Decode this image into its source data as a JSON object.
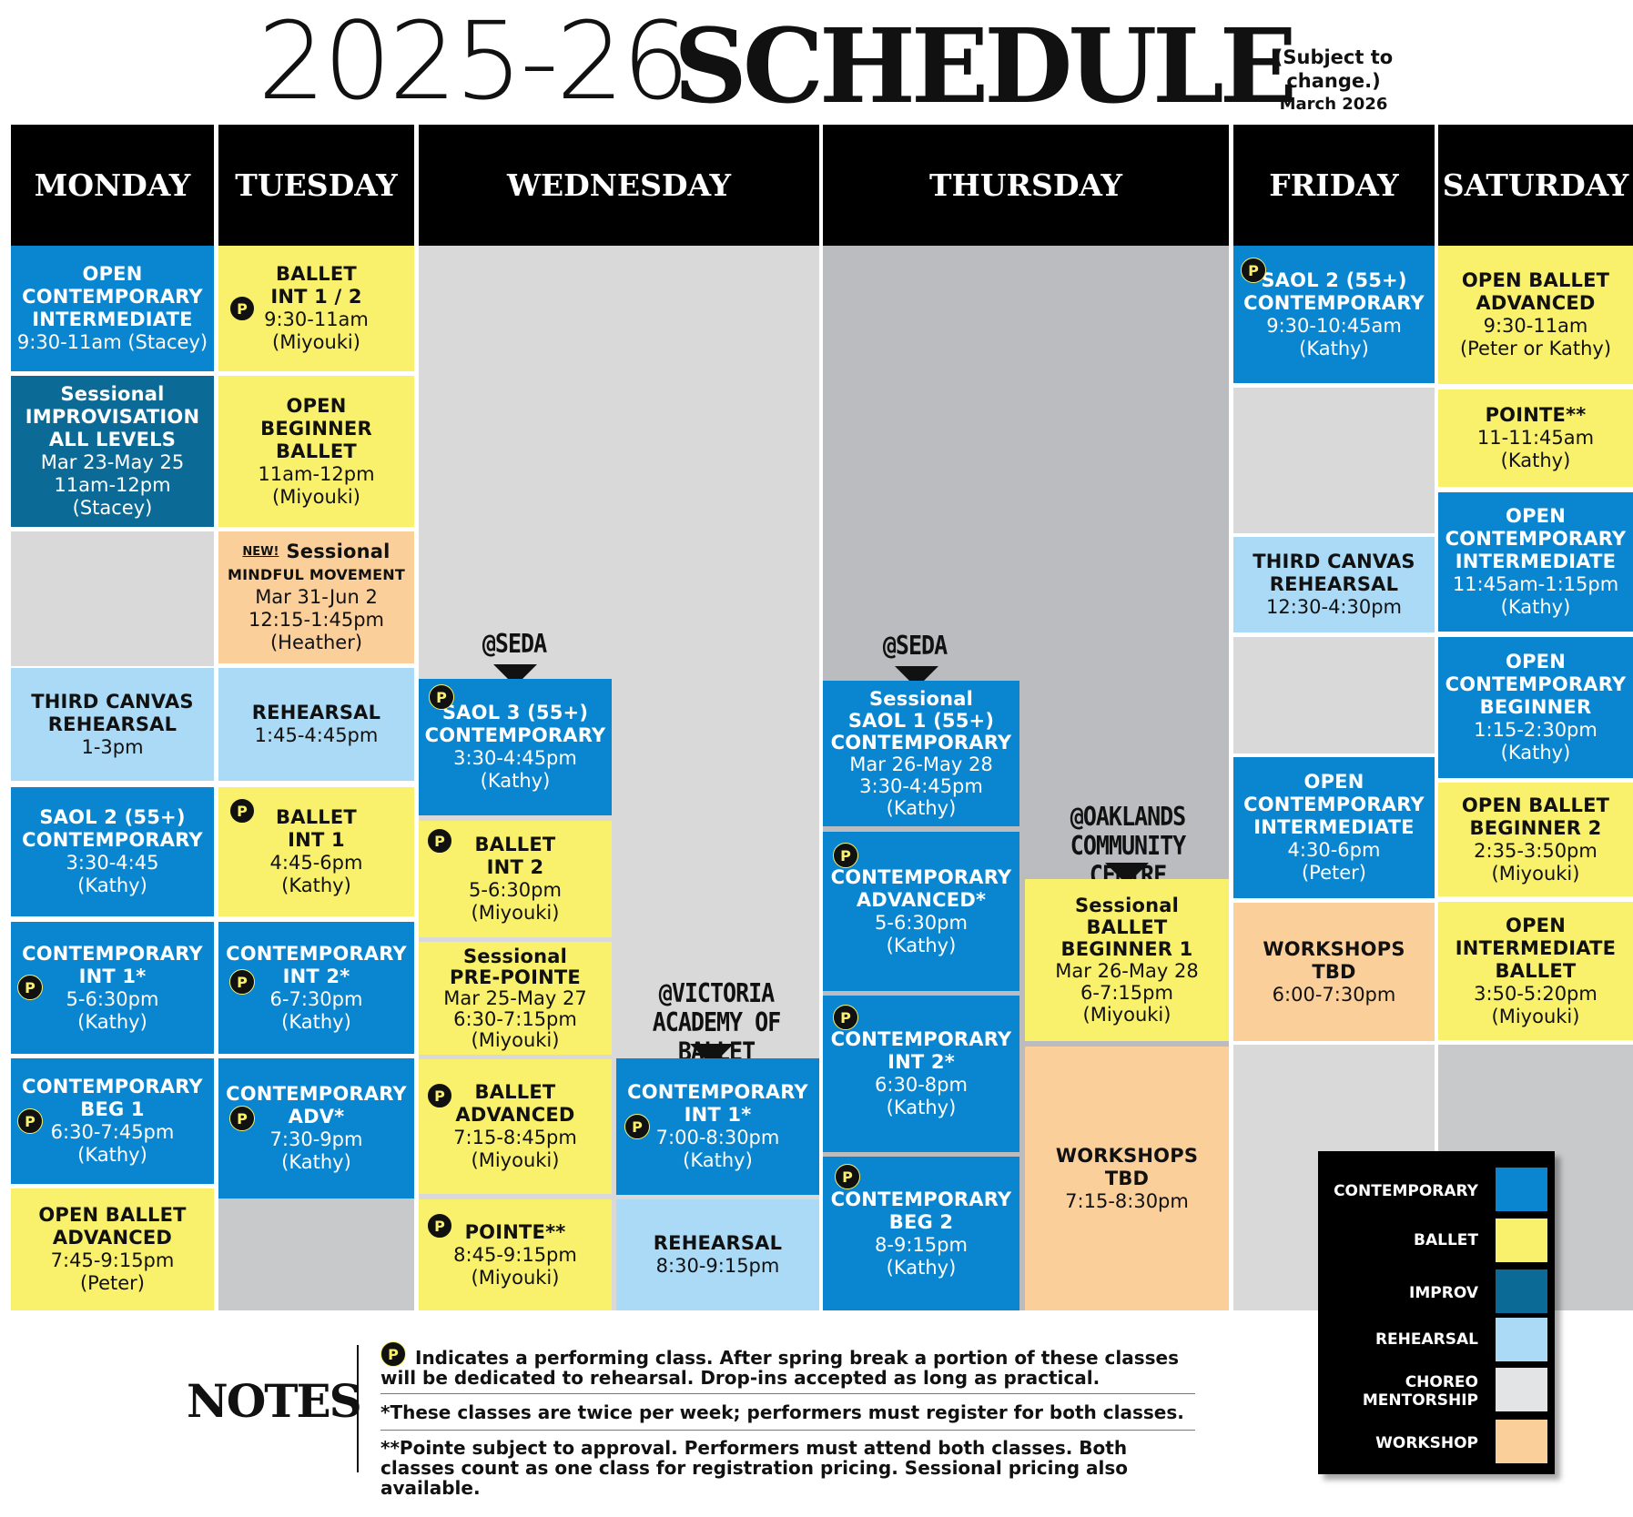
{
  "header": {
    "title_year": "2025-26",
    "title_word": "SCHEDULE",
    "subject_note": "(Subject to change.)",
    "date": "March 2026"
  },
  "days": [
    "MONDAY",
    "TUESDAY",
    "WEDNESDAY",
    "THURSDAY",
    "FRIDAY",
    "SATURDAY"
  ],
  "performing_badge": "P",
  "colors": {
    "contemporary": "#0a85cf",
    "ballet": "#f9f16b",
    "improv": "#0b6b96",
    "rehearsal": "#aadaf6",
    "choreo_mentorship": "#e3e4e6",
    "workshop": "#fbcf99"
  },
  "monday": [
    {
      "lines": [
        "OPEN",
        "CONTEMPORARY",
        "INTERMEDIATE"
      ],
      "sub": [
        "9:30-11am (Stacey)"
      ]
    },
    {
      "lines": [
        "Sessional",
        "IMPROVISATION",
        "ALL LEVELS"
      ],
      "sub": [
        "Mar 23-May 25",
        "11am-12pm (Stacey)"
      ]
    },
    {
      "lines": [
        "THIRD CANVAS",
        "REHEARSAL"
      ],
      "sub": [
        "1-3pm"
      ]
    },
    {
      "lines": [
        "SAOL 2 (55+)",
        "CONTEMPORARY"
      ],
      "sub": [
        "3:30-4:45",
        "(Kathy)"
      ]
    },
    {
      "lines": [
        "CONTEMPORARY",
        "INT 1*"
      ],
      "sub": [
        "5-6:30pm",
        "(Kathy)"
      ]
    },
    {
      "lines": [
        "CONTEMPORARY",
        "BEG 1"
      ],
      "sub": [
        "6:30-7:45pm",
        "(Kathy)"
      ]
    },
    {
      "lines": [
        "OPEN BALLET",
        "ADVANCED"
      ],
      "sub": [
        "7:45-9:15pm",
        "(Peter)"
      ]
    }
  ],
  "tuesday": [
    {
      "lines": [
        "BALLET",
        "INT 1 / 2"
      ],
      "sub": [
        "9:30-11am",
        "(Miyouki)"
      ]
    },
    {
      "lines": [
        "OPEN",
        "BEGINNER",
        "BALLET"
      ],
      "sub": [
        "11am-12pm",
        "(Miyouki)"
      ]
    },
    {
      "new": "NEW!",
      "lines": [
        "Sessional"
      ],
      "small": "MINDFUL MOVEMENT",
      "sub": [
        "Mar 31-Jun 2",
        "12:15-1:45pm",
        "(Heather)"
      ]
    },
    {
      "lines": [
        "REHEARSAL"
      ],
      "sub": [
        "1:45-4:45pm"
      ]
    },
    {
      "lines": [
        "BALLET",
        "INT 1"
      ],
      "sub": [
        "4:45-6pm",
        "(Kathy)"
      ]
    },
    {
      "lines": [
        "CONTEMPORARY",
        "INT 2*"
      ],
      "sub": [
        "6-7:30pm",
        "(Kathy)"
      ]
    },
    {
      "lines": [
        "CONTEMPORARY",
        "ADV*"
      ],
      "sub": [
        "7:30-9pm",
        "(Kathy)"
      ]
    }
  ],
  "wednesday": {
    "venue1": "@SEDA",
    "venue2": [
      "@VICTORIA",
      "ACADEMY OF BALLET"
    ],
    "col1": [
      {
        "lines": [
          "SAOL 3 (55+)",
          "CONTEMPORARY"
        ],
        "sub": [
          "3:30-4:45pm",
          "(Kathy)"
        ]
      },
      {
        "lines": [
          "BALLET",
          "INT 2"
        ],
        "sub": [
          "5-6:30pm",
          "(Miyouki)"
        ]
      },
      {
        "lines": [
          "Sessional",
          "PRE-POINTE"
        ],
        "sub": [
          "Mar 25-May 27",
          "6:30-7:15pm",
          "(Miyouki)"
        ]
      },
      {
        "lines": [
          "BALLET",
          "ADVANCED"
        ],
        "sub": [
          "7:15-8:45pm",
          "(Miyouki)"
        ]
      },
      {
        "lines": [
          "POINTE**"
        ],
        "sub": [
          "8:45-9:15pm",
          "(Miyouki)"
        ]
      }
    ],
    "col2": [
      {
        "lines": [
          "CONTEMPORARY",
          "INT 1*"
        ],
        "sub": [
          "7:00-8:30pm",
          "(Kathy)"
        ]
      },
      {
        "lines": [
          "REHEARSAL"
        ],
        "sub": [
          "8:30-9:15pm"
        ]
      }
    ]
  },
  "thursday": {
    "venue1": "@SEDA",
    "venue2": [
      "@OAKLANDS",
      "COMMUNITY CENTRE"
    ],
    "col1": [
      {
        "lines": [
          "Sessional",
          "SAOL 1 (55+)",
          "CONTEMPORARY"
        ],
        "sub": [
          "Mar 26-May 28",
          "3:30-4:45pm",
          "(Kathy)"
        ]
      },
      {
        "lines": [
          "CONTEMPORARY",
          "ADVANCED*"
        ],
        "sub": [
          "5-6:30pm",
          "(Kathy)"
        ]
      },
      {
        "lines": [
          "CONTEMPORARY",
          "INT 2*"
        ],
        "sub": [
          "6:30-8pm",
          "(Kathy)"
        ]
      },
      {
        "lines": [
          "CONTEMPORARY",
          "BEG 2"
        ],
        "sub": [
          "8-9:15pm",
          "(Kathy)"
        ]
      }
    ],
    "col2": [
      {
        "lines": [
          "Sessional",
          "BALLET",
          "BEGINNER 1"
        ],
        "sub": [
          "Mar 26-May 28",
          "6-7:15pm",
          "(Miyouki)"
        ]
      },
      {
        "lines": [
          "WORKSHOPS",
          "TBD"
        ],
        "sub": [
          "7:15-8:30pm"
        ]
      }
    ]
  },
  "friday": [
    {
      "lines": [
        "SAOL 2 (55+)",
        "CONTEMPORARY"
      ],
      "sub": [
        "9:30-10:45am",
        "(Kathy)"
      ]
    },
    {
      "lines": [
        "THIRD CANVAS",
        "REHEARSAL"
      ],
      "sub": [
        "12:30-4:30pm"
      ]
    },
    {
      "lines": [
        "OPEN",
        "CONTEMPORARY",
        "INTERMEDIATE"
      ],
      "sub": [
        "4:30-6pm",
        "(Peter)"
      ]
    },
    {
      "lines": [
        "WORKSHOPS",
        "TBD"
      ],
      "sub": [
        "6:00-7:30pm"
      ]
    }
  ],
  "saturday": [
    {
      "lines": [
        "OPEN BALLET",
        "ADVANCED"
      ],
      "sub": [
        "9:30-11am",
        "(Peter or Kathy)"
      ]
    },
    {
      "lines": [
        "POINTE**"
      ],
      "sub": [
        "11-11:45am",
        "(Kathy)"
      ]
    },
    {
      "lines": [
        "OPEN",
        "CONTEMPORARY",
        "INTERMEDIATE"
      ],
      "sub": [
        "11:45am-1:15pm",
        "(Kathy)"
      ]
    },
    {
      "lines": [
        "OPEN",
        "CONTEMPORARY",
        "BEGINNER"
      ],
      "sub": [
        "1:15-2:30pm",
        "(Kathy)"
      ]
    },
    {
      "lines": [
        "OPEN BALLET",
        "BEGINNER 2"
      ],
      "sub": [
        "2:35-3:50pm",
        "(Miyouki)"
      ]
    },
    {
      "lines": [
        "OPEN",
        "INTERMEDIATE",
        "BALLET"
      ],
      "sub": [
        "3:50-5:20pm",
        "(Miyouki)"
      ]
    }
  ],
  "notes": {
    "title": "NOTES",
    "note1": "Indicates a performing class. After spring break a portion of these classes will be dedicated to rehearsal. Drop-ins accepted as long as practical.",
    "note2": "*These classes are twice per week; performers must register for both classes.",
    "note3": "**Pointe subject to approval. Performers must attend both classes. Both classes count as one class for registration pricing. Sessional pricing also available."
  },
  "legend": {
    "contemporary": "CONTEMPORARY",
    "ballet": "BALLET",
    "improv": "IMPROV",
    "rehearsal": "REHEARSAL",
    "choreo": [
      "CHOREO",
      "MENTORSHIP"
    ],
    "workshop": "WORKSHOP"
  }
}
